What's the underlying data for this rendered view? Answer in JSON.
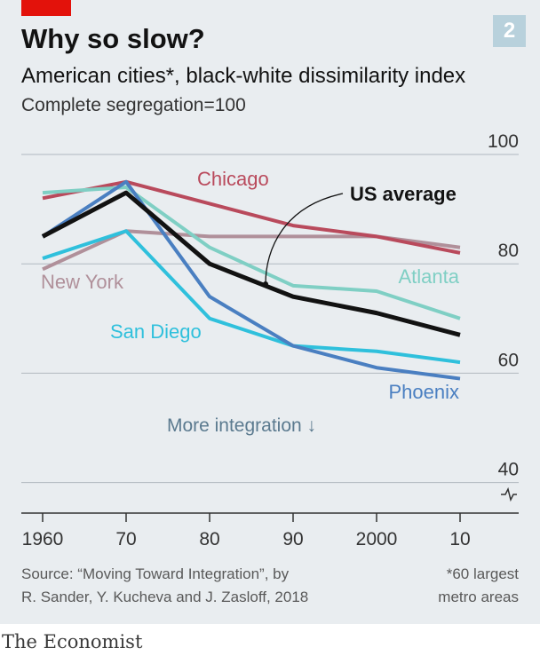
{
  "header": {
    "title": "Why so slow?",
    "subtitle": "American cities*, black-white dissimilarity index",
    "note": "Complete segregation=100",
    "badge": "2"
  },
  "annotation": "More integration ↓",
  "source": {
    "line1": "Source: “Moving Toward Integration”, by",
    "line2": "R. Sander, Y. Kucheva and J. Zasloff, 2018"
  },
  "footnote": {
    "line1": "*60 largest",
    "line2": "metro areas"
  },
  "logo": "The Economist",
  "colors": {
    "chicago": "#b94a5c",
    "us_average": "#121212",
    "atlanta": "#7fcfc4",
    "new_york": "#b0909a",
    "san_diego": "#2fc0dc",
    "phoenix": "#4a7fc1",
    "grid": "#b0b8bf",
    "axis": "#333333",
    "tick_label": "#333333"
  },
  "chart_data": {
    "type": "line",
    "x": [
      1960,
      1970,
      1980,
      1990,
      2000,
      2010
    ],
    "x_tick_labels": [
      "1960",
      "70",
      "80",
      "90",
      "2000",
      "10"
    ],
    "y_ticks": [
      40,
      60,
      80,
      100
    ],
    "y_tick_labels": [
      "40",
      "60",
      "80",
      "100"
    ],
    "ylim": [
      36,
      100
    ],
    "axis_break": true,
    "grid": true,
    "series": [
      {
        "name": "New York",
        "key": "new_york",
        "values": [
          79,
          86,
          85,
          85,
          85,
          83
        ]
      },
      {
        "name": "Chicago",
        "key": "chicago",
        "values": [
          92,
          95,
          91,
          87,
          85,
          82
        ]
      },
      {
        "name": "Atlanta",
        "key": "atlanta",
        "values": [
          93,
          94,
          83,
          76,
          75,
          70
        ]
      },
      {
        "name": "San Diego",
        "key": "san_diego",
        "values": [
          81,
          86,
          70,
          65,
          64,
          62
        ]
      },
      {
        "name": "Phoenix",
        "key": "phoenix",
        "values": [
          85,
          95,
          74,
          65,
          61,
          59
        ]
      },
      {
        "name": "US average",
        "key": "us_average",
        "values": [
          85,
          93,
          80,
          74,
          71,
          67
        ]
      }
    ]
  }
}
